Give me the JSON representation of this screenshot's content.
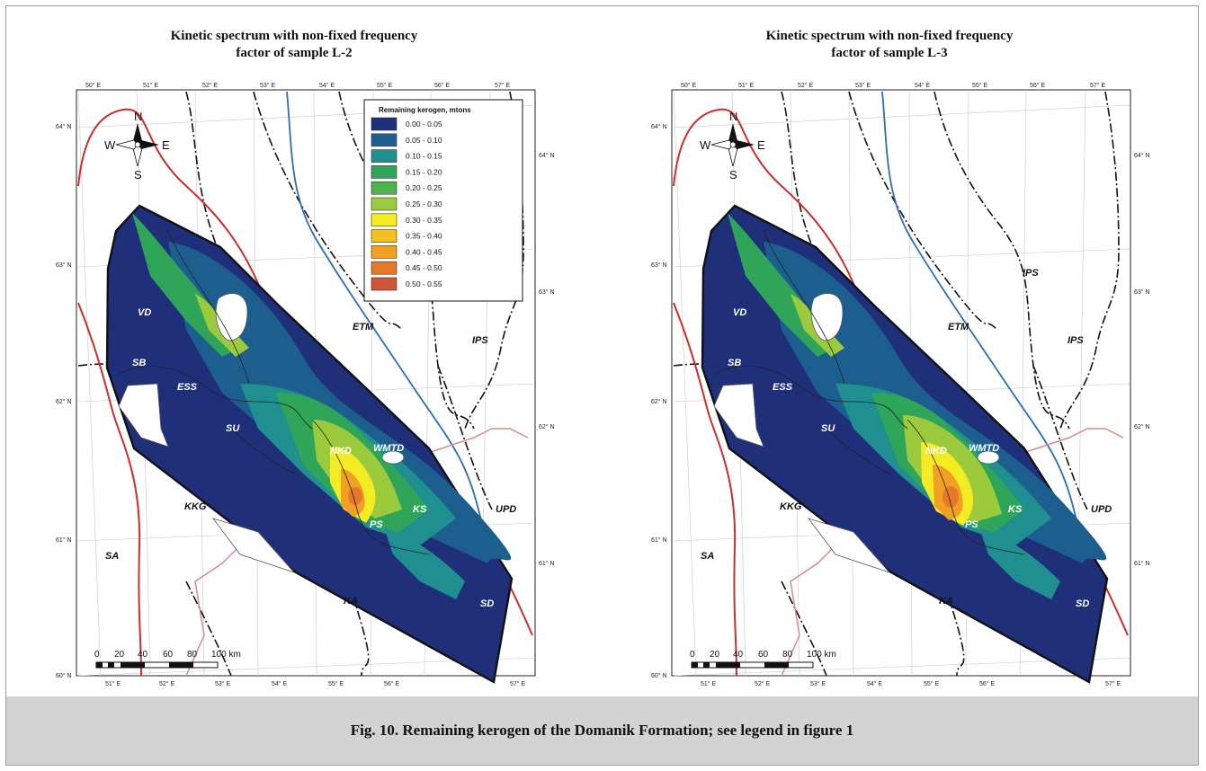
{
  "caption": "Fig. 10. Remaining kerogen of the Domanik Formation; see legend in figure 1",
  "maps": [
    {
      "title_line1": "Kinetic spectrum with non-fixed frequency",
      "title_line2": "factor of sample L-2",
      "show_legend": true,
      "show_ips_top": false
    },
    {
      "title_line1": "Kinetic spectrum with non-fixed frequency",
      "title_line2": "factor of sample L-3",
      "show_legend": false,
      "show_ips_top": true
    }
  ],
  "longitude_ticks_top": [
    "50° E",
    "51° E",
    "52° E",
    "53° E",
    "54° E",
    "55° E",
    "56° E",
    "57° E"
  ],
  "longitude_ticks_bottom": [
    "51° E",
    "52° E",
    "53° E",
    "54° E",
    "55° E",
    "56° E",
    "57° E"
  ],
  "latitude_ticks_left": [
    "64° N",
    "63° N",
    "62° N",
    "61° N",
    "60° N"
  ],
  "latitude_ticks_right": [
    "64° N",
    "63° N",
    "62° N",
    "61° N"
  ],
  "compass": {
    "n": "N",
    "s": "S",
    "e": "E",
    "w": "W"
  },
  "scale_bar": {
    "labels": [
      "0",
      "20",
      "40",
      "60",
      "80",
      "100 km"
    ]
  },
  "legend": {
    "title": "Remaining kerogen, mtons",
    "items": [
      {
        "label": "0.00 - 0.05",
        "color": "#1f2f7a"
      },
      {
        "label": "0.05 - 0.10",
        "color": "#1c5f8f"
      },
      {
        "label": "0.10 - 0.15",
        "color": "#1f8f8f"
      },
      {
        "label": "0.15 - 0.20",
        "color": "#2fa55a"
      },
      {
        "label": "0.20 - 0.25",
        "color": "#4cb44a"
      },
      {
        "label": "0.25 - 0.30",
        "color": "#9bcb3c"
      },
      {
        "label": "0.30 - 0.35",
        "color": "#f4ec22"
      },
      {
        "label": "0.35 - 0.40",
        "color": "#f5c021"
      },
      {
        "label": "0.40 - 0.45",
        "color": "#f1a024"
      },
      {
        "label": "0.45 - 0.50",
        "color": "#e4782b"
      },
      {
        "label": "0.50 - 0.55",
        "color": "#cf5538"
      }
    ]
  },
  "regions": {
    "VD": "VD",
    "SB": "SB",
    "ESS": "ESS",
    "SU": "SU",
    "NKD": "NKD",
    "WMTD": "WMTD",
    "KS": "KS",
    "PS": "PS",
    "SD": "SD",
    "KA": "KA",
    "KKG": "KKG",
    "SA": "SA",
    "UPD": "UPD",
    "ETM": "ETM",
    "IPS": "IPS"
  },
  "colors": {
    "red_line": "#d42a2a",
    "blue_line": "#2a6db8",
    "boundary": "#111111",
    "pink_line": "#d88a8a"
  }
}
